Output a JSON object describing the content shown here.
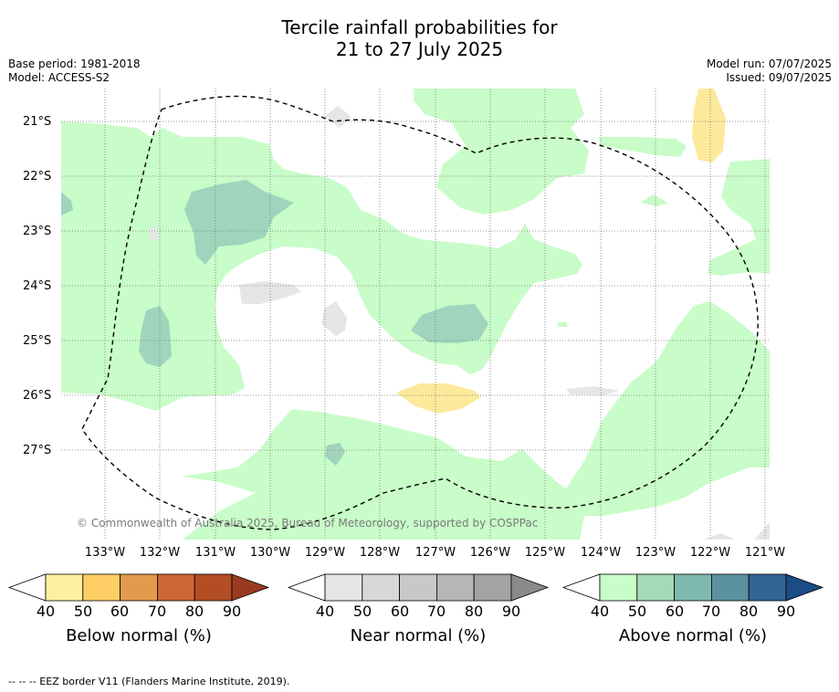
{
  "title_line1": "Tercile rainfall probabilities for",
  "title_line2": "21 to 27 July 2025",
  "meta_left": {
    "base_period": "Base period: 1981-2018",
    "model": "Model: ACCESS-S2"
  },
  "meta_right": {
    "model_run": "Model run: 07/07/2025",
    "issued": "Issued: 09/07/2025"
  },
  "lat_labels": [
    "21°S",
    "22°S",
    "23°S",
    "24°S",
    "25°S",
    "26°S",
    "27°S"
  ],
  "lon_labels": [
    "133°W",
    "132°W",
    "131°W",
    "130°W",
    "129°W",
    "128°W",
    "127°W",
    "126°W",
    "125°W",
    "124°W",
    "123°W",
    "122°W",
    "121°W"
  ],
  "copyright": "© Commonwealth of Australia 2025, Bureau of Meteorology, supported by COSPPac",
  "colorbars": [
    {
      "title": "Below normal (%)",
      "ticks": [
        "40",
        "50",
        "60",
        "70",
        "80",
        "90"
      ],
      "colors": [
        "#ffffff",
        "#fff0a0",
        "#fece65",
        "#e29a4c",
        "#ce6636",
        "#b24d26",
        "#9a3a20"
      ]
    },
    {
      "title": "Near normal (%)",
      "ticks": [
        "40",
        "50",
        "60",
        "70",
        "80",
        "90"
      ],
      "colors": [
        "#ffffff",
        "#e6e6e6",
        "#d8d8d8",
        "#c8c8c8",
        "#b6b6b6",
        "#a3a3a3",
        "#8a8a8a"
      ]
    },
    {
      "title": "Above normal (%)",
      "ticks": [
        "40",
        "50",
        "60",
        "70",
        "80",
        "90"
      ],
      "colors": [
        "#ffffff",
        "#c8fcc8",
        "#a6d9b6",
        "#7fb8b0",
        "#5a92a0",
        "#346493",
        "#1b4c86"
      ]
    }
  ],
  "footer": "--  --  -- EEZ border V11 (Flanders Marine Institute, 2019).",
  "colors": {
    "above_40": "#c8fcc8",
    "above_50": "#a0d4bc",
    "below_40": "#fde99b",
    "near_40": "#e6e6e6",
    "eez_line": "#000000",
    "grid": "#777777"
  }
}
